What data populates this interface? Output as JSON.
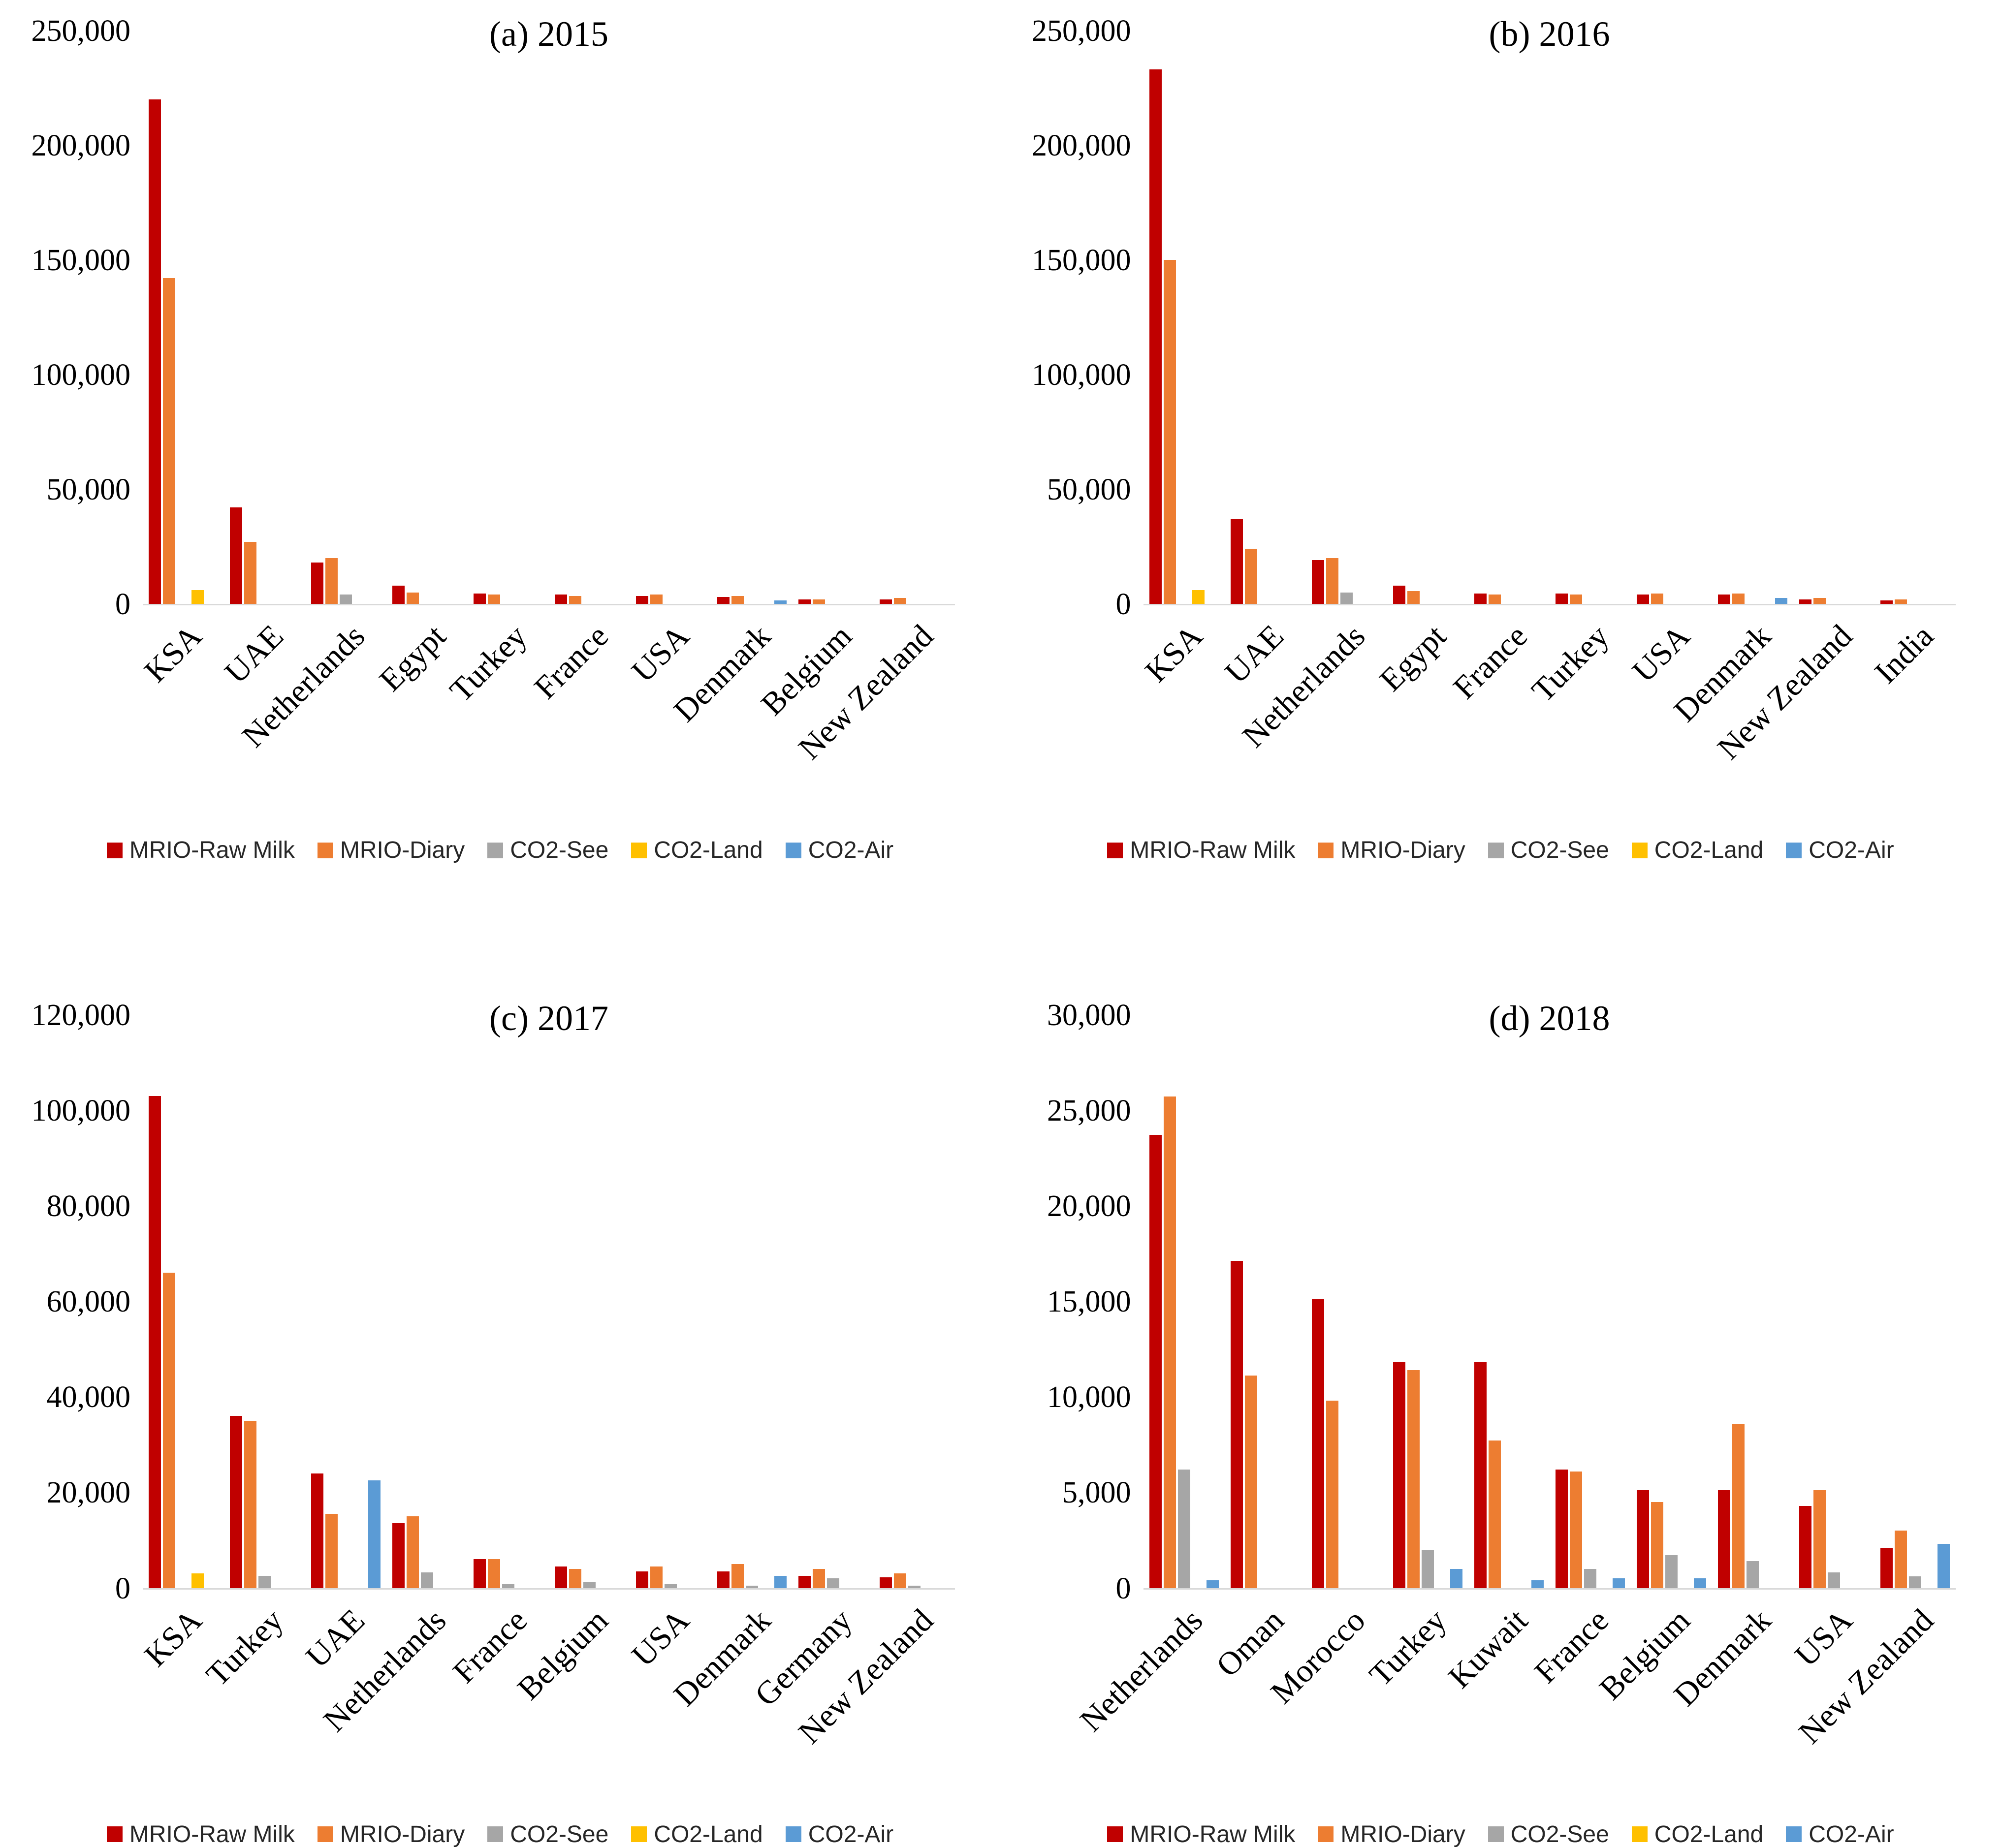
{
  "figure": {
    "background": "#ffffff",
    "description": "Four clustered bar charts comparing MRIO and CO2 indicators by country for 2015-2018"
  },
  "colors": {
    "mrio_raw_milk": "#C00000",
    "mrio_diary": "#ED7D31",
    "co2_see": "#A6A6A6",
    "co2_land": "#FFC000",
    "co2_air": "#5B9BD5"
  },
  "chart_data": [
    {
      "type": "bar",
      "title": "(a) 2015",
      "xlabel": "",
      "ylabel": "",
      "ylim": [
        0,
        250000
      ],
      "yticks": [
        0,
        50000,
        100000,
        150000,
        200000,
        250000
      ],
      "grid": false,
      "legend_position": "bottom",
      "categories": [
        "KSA",
        "UAE",
        "Netherlands",
        "Egypt",
        "Turkey",
        "France",
        "USA",
        "Denmark",
        "Belgium",
        "New Zealand"
      ],
      "series": [
        {
          "name": "MRIO-Raw Milk",
          "color": "#C00000",
          "values": [
            220000,
            42000,
            18000,
            8000,
            4500,
            4000,
            3500,
            3000,
            2000,
            2000
          ]
        },
        {
          "name": "MRIO-Diary",
          "color": "#ED7D31",
          "values": [
            142000,
            27000,
            20000,
            5000,
            4000,
            3500,
            4000,
            3500,
            2000,
            2500
          ]
        },
        {
          "name": "CO2-See",
          "color": "#A6A6A6",
          "values": [
            0,
            0,
            4000,
            0,
            0,
            0,
            0,
            0,
            0,
            0
          ]
        },
        {
          "name": "CO2-Land",
          "color": "#FFC000",
          "values": [
            6000,
            0,
            0,
            0,
            0,
            0,
            0,
            0,
            0,
            0
          ]
        },
        {
          "name": "CO2-Air",
          "color": "#5B9BD5",
          "values": [
            0,
            0,
            0,
            0,
            0,
            0,
            0,
            1500,
            0,
            0
          ]
        }
      ]
    },
    {
      "type": "bar",
      "title": "(b) 2016",
      "xlabel": "",
      "ylabel": "",
      "ylim": [
        0,
        250000
      ],
      "yticks": [
        0,
        50000,
        100000,
        150000,
        200000,
        250000
      ],
      "grid": false,
      "legend_position": "bottom",
      "categories": [
        "KSA",
        "UAE",
        "Netherlands",
        "Egypt",
        "France",
        "Turkey",
        "USA",
        "Denmark",
        "New Zealand",
        "India"
      ],
      "series": [
        {
          "name": "MRIO-Raw Milk",
          "color": "#C00000",
          "values": [
            233000,
            37000,
            19000,
            8000,
            4500,
            4500,
            4000,
            4000,
            2000,
            1500
          ]
        },
        {
          "name": "MRIO-Diary",
          "color": "#ED7D31",
          "values": [
            150000,
            24000,
            20000,
            5500,
            4000,
            4000,
            4500,
            4500,
            2500,
            2000
          ]
        },
        {
          "name": "CO2-See",
          "color": "#A6A6A6",
          "values": [
            0,
            0,
            5000,
            0,
            0,
            0,
            0,
            0,
            0,
            0
          ]
        },
        {
          "name": "CO2-Land",
          "color": "#FFC000",
          "values": [
            6000,
            0,
            0,
            0,
            0,
            0,
            0,
            0,
            0,
            0
          ]
        },
        {
          "name": "CO2-Air",
          "color": "#5B9BD5",
          "values": [
            0,
            0,
            0,
            0,
            0,
            0,
            0,
            2500,
            0,
            0
          ]
        }
      ]
    },
    {
      "type": "bar",
      "title": "(c) 2017",
      "xlabel": "",
      "ylabel": "",
      "ylim": [
        0,
        120000
      ],
      "yticks": [
        0,
        20000,
        40000,
        60000,
        80000,
        100000,
        120000
      ],
      "grid": false,
      "legend_position": "bottom",
      "categories": [
        "KSA",
        "Turkey",
        "UAE",
        "Netherlands",
        "France",
        "Belgium",
        "USA",
        "Denmark",
        "Germany",
        "New Zealand"
      ],
      "series": [
        {
          "name": "MRIO-Raw Milk",
          "color": "#C00000",
          "values": [
            103000,
            36000,
            24000,
            13500,
            6000,
            4500,
            3500,
            3500,
            2500,
            2200
          ]
        },
        {
          "name": "MRIO-Diary",
          "color": "#ED7D31",
          "values": [
            66000,
            35000,
            15500,
            15000,
            6000,
            4000,
            4500,
            5000,
            4000,
            3000
          ]
        },
        {
          "name": "CO2-See",
          "color": "#A6A6A6",
          "values": [
            0,
            2500,
            0,
            3200,
            800,
            1200,
            800,
            500,
            2000,
            500
          ]
        },
        {
          "name": "CO2-Land",
          "color": "#FFC000",
          "values": [
            3000,
            0,
            0,
            0,
            0,
            0,
            0,
            0,
            0,
            0
          ]
        },
        {
          "name": "CO2-Air",
          "color": "#5B9BD5",
          "values": [
            0,
            0,
            22500,
            0,
            0,
            0,
            0,
            2500,
            0,
            0
          ]
        }
      ]
    },
    {
      "type": "bar",
      "title": "(d) 2018",
      "xlabel": "",
      "ylabel": "",
      "ylim": [
        0,
        30000
      ],
      "yticks": [
        0,
        5000,
        10000,
        15000,
        20000,
        25000,
        30000
      ],
      "grid": false,
      "legend_position": "bottom",
      "categories": [
        "Netherlands",
        "Oman",
        "Morocco",
        "Turkey",
        "Kuwait",
        "France",
        "Belgium",
        "Denmark",
        "USA",
        "New Zealand"
      ],
      "series": [
        {
          "name": "MRIO-Raw Milk",
          "color": "#C00000",
          "values": [
            23700,
            17100,
            15100,
            11800,
            11800,
            6200,
            5100,
            5100,
            4300,
            2100
          ]
        },
        {
          "name": "MRIO-Diary",
          "color": "#ED7D31",
          "values": [
            25700,
            11100,
            9800,
            11400,
            7700,
            6100,
            4500,
            8600,
            5100,
            3000
          ]
        },
        {
          "name": "CO2-See",
          "color": "#A6A6A6",
          "values": [
            6200,
            0,
            0,
            2000,
            0,
            1000,
            1700,
            1400,
            800,
            600
          ]
        },
        {
          "name": "CO2-Land",
          "color": "#FFC000",
          "values": [
            0,
            0,
            0,
            0,
            0,
            0,
            0,
            0,
            0,
            0
          ]
        },
        {
          "name": "CO2-Air",
          "color": "#5B9BD5",
          "values": [
            400,
            0,
            0,
            1000,
            400,
            500,
            500,
            0,
            0,
            2300
          ]
        }
      ]
    }
  ]
}
